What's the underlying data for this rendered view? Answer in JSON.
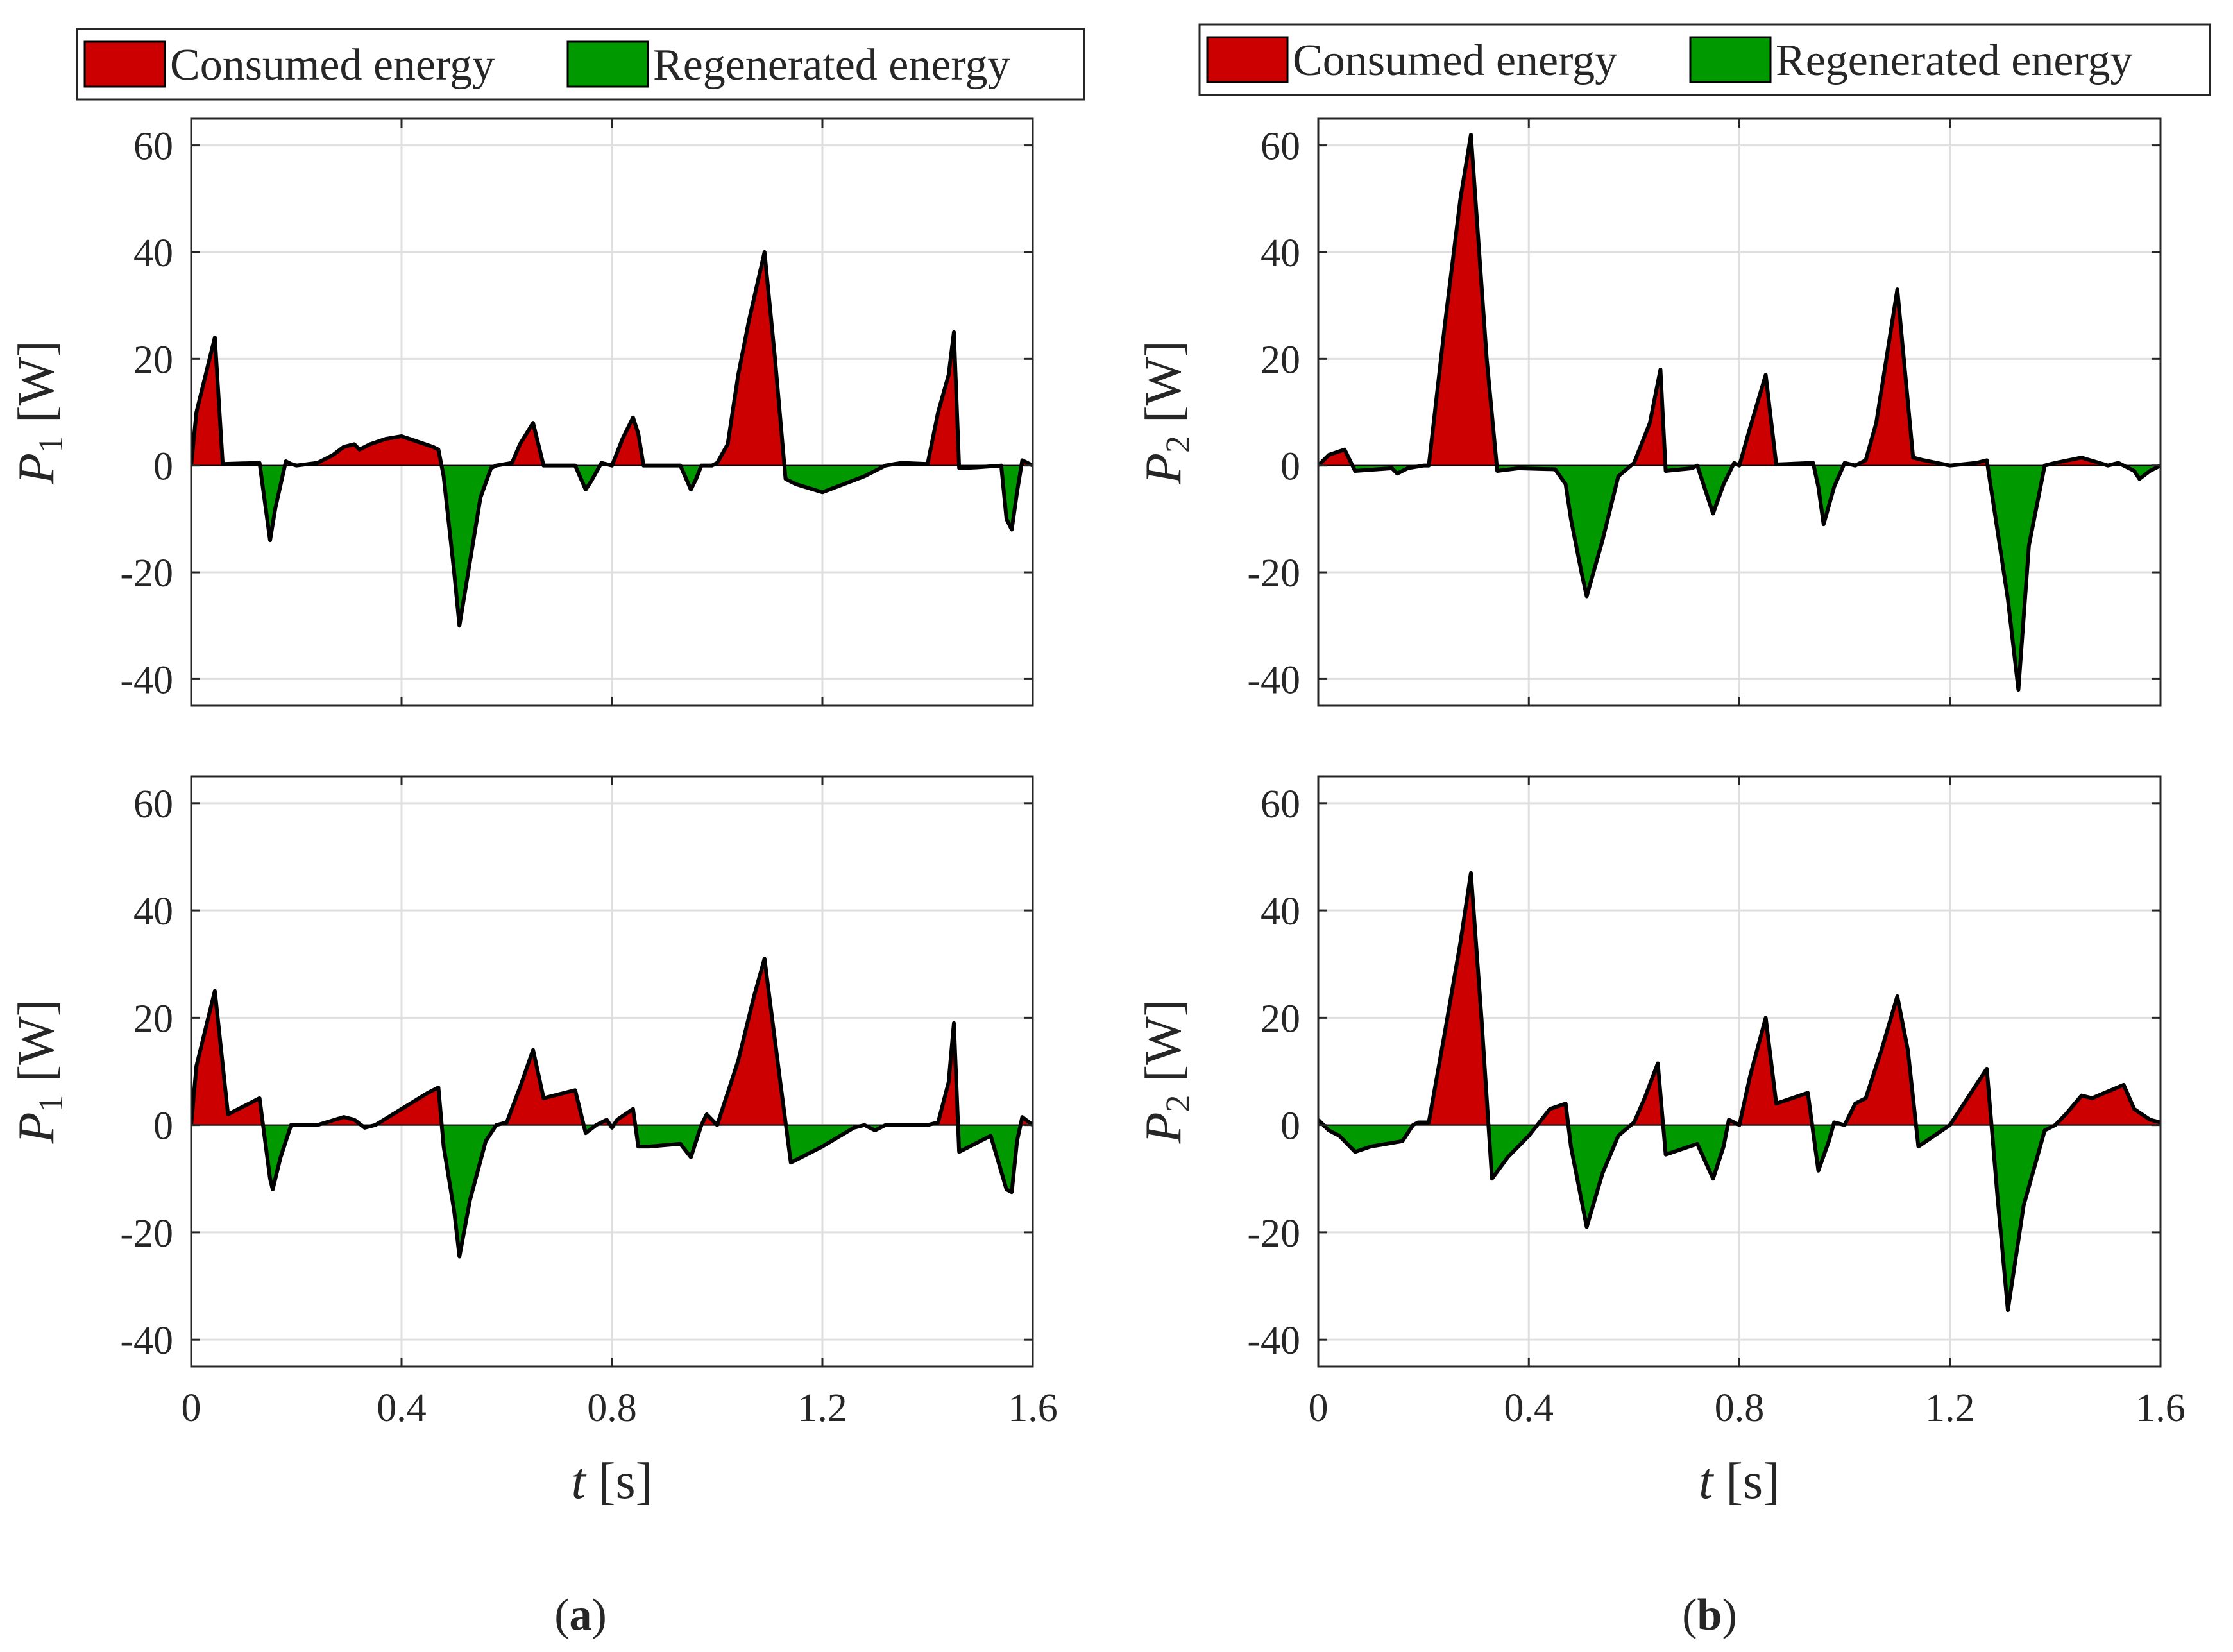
{
  "colors": {
    "consumed": "#cc0000",
    "regenerated": "#009900",
    "line": "#000000",
    "grid": "#dfdfdf",
    "axis": "#262626"
  },
  "panels": [
    {
      "label_open": "(",
      "label_letter": "a",
      "label_close": ")"
    },
    {
      "label_open": "(",
      "label_letter": "b",
      "label_close": ")"
    }
  ],
  "chart_data": [
    {
      "type": "area",
      "panel": "a",
      "position": "top",
      "legend": [
        "Consumed energy",
        "Regenerated energy"
      ],
      "ylabel_main": "P",
      "ylabel_sub": "1",
      "ylabel_unit": " [W]",
      "xlim": [
        0,
        1.6
      ],
      "ylim": [
        -45,
        65
      ],
      "xticks": [
        "0",
        "0.4",
        "0.8",
        "1.2",
        "1.6"
      ],
      "yticks": [
        "-40",
        "-20",
        "0",
        "20",
        "40",
        "60"
      ],
      "grid": true,
      "x": [
        0,
        0.01,
        0.02,
        0.045,
        0.06,
        0.13,
        0.15,
        0.16,
        0.18,
        0.19,
        0.2,
        0.24,
        0.27,
        0.29,
        0.31,
        0.32,
        0.34,
        0.37,
        0.4,
        0.43,
        0.46,
        0.47,
        0.48,
        0.5,
        0.51,
        0.53,
        0.55,
        0.57,
        0.58,
        0.61,
        0.625,
        0.65,
        0.67,
        0.71,
        0.73,
        0.75,
        0.76,
        0.78,
        0.8,
        0.82,
        0.84,
        0.85,
        0.86,
        0.93,
        0.95,
        0.96,
        0.97,
        0.99,
        1.0,
        1.02,
        1.04,
        1.06,
        1.09,
        1.11,
        1.13,
        1.15,
        1.2,
        1.24,
        1.28,
        1.3,
        1.32,
        1.35,
        1.4,
        1.42,
        1.44,
        1.45,
        1.46,
        1.5,
        1.54,
        1.55,
        1.56,
        1.57,
        1.58,
        1.6
      ],
      "y": [
        0,
        10,
        14,
        24,
        0.3,
        0.5,
        -14,
        -8,
        0.8,
        0.3,
        0,
        0.5,
        2,
        3.5,
        4,
        3,
        4,
        5,
        5.5,
        4.5,
        3.5,
        3,
        -2,
        -20,
        -30,
        -18,
        -6,
        -0.5,
        0,
        0.5,
        4,
        8,
        0,
        0,
        0,
        -4.5,
        -3,
        0.5,
        0,
        5,
        9,
        6,
        0,
        0,
        -4.5,
        -2.5,
        0,
        0,
        0.5,
        4,
        17,
        27,
        40,
        20,
        -2.5,
        -3.5,
        -5,
        -3.5,
        -2,
        -1,
        0,
        0.5,
        0.3,
        10,
        17,
        25,
        -0.5,
        -0.3,
        0,
        -10,
        -12,
        -5,
        1,
        0
      ]
    },
    {
      "type": "area",
      "panel": "a",
      "position": "bottom",
      "ylabel_main": "P",
      "ylabel_sub": "1",
      "ylabel_unit": " [W]",
      "xlabel_main": "t",
      "xlabel_unit": " [s]",
      "xlim": [
        0,
        1.6
      ],
      "ylim": [
        -45,
        65
      ],
      "xticks": [
        "0",
        "0.4",
        "0.8",
        "1.2",
        "1.6"
      ],
      "yticks": [
        "-40",
        "-20",
        "0",
        "20",
        "40",
        "60"
      ],
      "grid": true,
      "x": [
        0,
        0.01,
        0.02,
        0.045,
        0.07,
        0.13,
        0.15,
        0.155,
        0.17,
        0.19,
        0.2,
        0.24,
        0.29,
        0.31,
        0.33,
        0.35,
        0.4,
        0.45,
        0.47,
        0.48,
        0.5,
        0.51,
        0.53,
        0.56,
        0.58,
        0.6,
        0.625,
        0.65,
        0.67,
        0.73,
        0.75,
        0.77,
        0.79,
        0.8,
        0.81,
        0.84,
        0.85,
        0.87,
        0.93,
        0.95,
        0.97,
        0.98,
        1.0,
        1.04,
        1.07,
        1.09,
        1.12,
        1.14,
        1.2,
        1.26,
        1.28,
        1.3,
        1.32,
        1.4,
        1.42,
        1.44,
        1.45,
        1.46,
        1.52,
        1.55,
        1.56,
        1.57,
        1.58,
        1.6
      ],
      "y": [
        0,
        11,
        15,
        25,
        2,
        5,
        -10,
        -12,
        -6,
        0,
        0,
        0,
        1.5,
        1,
        -0.5,
        0,
        3,
        6,
        7,
        -4,
        -16,
        -24.5,
        -14,
        -3,
        0,
        0.5,
        7,
        14,
        5,
        6.5,
        -1.5,
        0,
        1,
        -0.5,
        1,
        3,
        -4,
        -4,
        -3.5,
        -6,
        0,
        2,
        0,
        12,
        24,
        31,
        8,
        -7,
        -4,
        -0.5,
        0,
        -1,
        0,
        0,
        0.5,
        8,
        19,
        -5,
        -2,
        -12,
        -12.5,
        -3,
        1.5,
        0
      ]
    },
    {
      "type": "area",
      "panel": "b",
      "position": "top",
      "legend": [
        "Consumed energy",
        "Regenerated energy"
      ],
      "ylabel_main": "P",
      "ylabel_sub": "2",
      "ylabel_unit": " [W]",
      "xlim": [
        0,
        1.6
      ],
      "ylim": [
        -45,
        65
      ],
      "xticks": [
        "0",
        "0.4",
        "0.8",
        "1.2",
        "1.6"
      ],
      "yticks": [
        "-40",
        "-20",
        "0",
        "20",
        "40",
        "60"
      ],
      "grid": true,
      "x": [
        0,
        0.01,
        0.02,
        0.05,
        0.07,
        0.14,
        0.15,
        0.17,
        0.2,
        0.21,
        0.24,
        0.27,
        0.29,
        0.32,
        0.34,
        0.38,
        0.45,
        0.47,
        0.48,
        0.5,
        0.51,
        0.54,
        0.57,
        0.6,
        0.63,
        0.65,
        0.66,
        0.71,
        0.72,
        0.75,
        0.77,
        0.79,
        0.8,
        0.82,
        0.85,
        0.87,
        0.94,
        0.95,
        0.96,
        0.98,
        1.0,
        1.02,
        1.04,
        1.06,
        1.1,
        1.13,
        1.15,
        1.2,
        1.25,
        1.27,
        1.31,
        1.33,
        1.35,
        1.38,
        1.4,
        1.45,
        1.5,
        1.52,
        1.55,
        1.56,
        1.58,
        1.6
      ],
      "y": [
        0,
        1,
        2,
        3,
        -1,
        -0.5,
        -1.5,
        -0.5,
        0,
        0,
        26,
        50,
        62,
        20,
        -1,
        -0.5,
        -0.7,
        -3.5,
        -10,
        -20,
        -24.5,
        -14,
        -2,
        0.5,
        8,
        18,
        -1,
        -0.5,
        0,
        -9,
        -3.5,
        0.5,
        0,
        7,
        17,
        0.2,
        0.5,
        -4,
        -11,
        -4,
        0.5,
        0,
        1,
        8,
        33,
        1.5,
        1,
        0,
        0.5,
        1,
        -25,
        -42,
        -15,
        0,
        0.5,
        1.5,
        0,
        0.5,
        -1,
        -2.5,
        -1,
        0
      ]
    },
    {
      "type": "area",
      "panel": "b",
      "position": "bottom",
      "ylabel_main": "P",
      "ylabel_sub": "2",
      "ylabel_unit": " [W]",
      "xlabel_main": "t",
      "xlabel_unit": " [s]",
      "xlim": [
        0,
        1.6
      ],
      "ylim": [
        -45,
        65
      ],
      "xticks": [
        "0",
        "0.4",
        "0.8",
        "1.2",
        "1.6"
      ],
      "yticks": [
        "-40",
        "-20",
        "0",
        "20",
        "40",
        "60"
      ],
      "grid": true,
      "x": [
        0,
        0.02,
        0.04,
        0.07,
        0.1,
        0.16,
        0.18,
        0.19,
        0.21,
        0.24,
        0.27,
        0.29,
        0.31,
        0.33,
        0.36,
        0.4,
        0.44,
        0.47,
        0.48,
        0.5,
        0.51,
        0.54,
        0.57,
        0.6,
        0.62,
        0.645,
        0.66,
        0.72,
        0.75,
        0.77,
        0.78,
        0.8,
        0.82,
        0.85,
        0.87,
        0.93,
        0.95,
        0.97,
        0.98,
        1.0,
        1.02,
        1.04,
        1.07,
        1.1,
        1.12,
        1.14,
        1.2,
        1.27,
        1.29,
        1.31,
        1.34,
        1.38,
        1.4,
        1.42,
        1.45,
        1.47,
        1.53,
        1.55,
        1.58,
        1.6
      ],
      "y": [
        1,
        -1,
        -2,
        -5,
        -4,
        -3,
        0,
        0.5,
        0.5,
        17,
        34,
        47,
        20,
        -10,
        -6,
        -2,
        3,
        4,
        -4,
        -14,
        -19,
        -9,
        -2,
        0.5,
        5,
        11.5,
        -5.5,
        -3.5,
        -10,
        -4,
        1,
        0,
        9,
        20,
        4,
        6,
        -8.5,
        -3,
        0.5,
        0,
        4,
        5,
        14,
        24,
        14,
        -4,
        0,
        10.5,
        -13,
        -34.5,
        -15,
        -1,
        0,
        2,
        5.5,
        5,
        7.5,
        3,
        1,
        0.5
      ]
    }
  ]
}
